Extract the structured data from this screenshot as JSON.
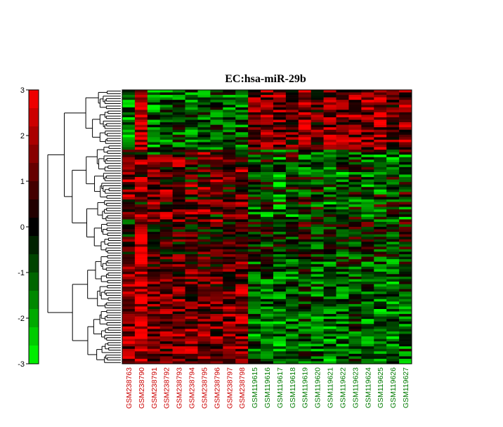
{
  "chart_data": {
    "type": "heatmap",
    "title": "EC:hsa-miR-29b",
    "colorbar": {
      "min": -3,
      "max": 3,
      "ticks": [
        "3",
        "2",
        "1",
        "0",
        "-1",
        "-2",
        "-3"
      ],
      "low_color": "#00ff00",
      "mid_color": "#000000",
      "high_color": "#ff0000"
    },
    "rows": 110,
    "columns": [
      {
        "name": "GSM238763",
        "group": "red"
      },
      {
        "name": "GSM238790",
        "group": "red"
      },
      {
        "name": "GSM238791",
        "group": "red"
      },
      {
        "name": "GSM238792",
        "group": "red"
      },
      {
        "name": "GSM238793",
        "group": "red"
      },
      {
        "name": "GSM238794",
        "group": "red"
      },
      {
        "name": "GSM238795",
        "group": "red"
      },
      {
        "name": "GSM238796",
        "group": "red"
      },
      {
        "name": "GSM238797",
        "group": "red"
      },
      {
        "name": "GSM238798",
        "group": "red"
      },
      {
        "name": "GSM119615",
        "group": "green"
      },
      {
        "name": "GSM119616",
        "group": "green"
      },
      {
        "name": "GSM119617",
        "group": "green"
      },
      {
        "name": "GSM119618",
        "group": "green"
      },
      {
        "name": "GSM119619",
        "group": "green"
      },
      {
        "name": "GSM119620",
        "group": "green"
      },
      {
        "name": "GSM119621",
        "group": "green"
      },
      {
        "name": "GSM119622",
        "group": "green"
      },
      {
        "name": "GSM119623",
        "group": "green"
      },
      {
        "name": "GSM119624",
        "group": "green"
      },
      {
        "name": "GSM119625",
        "group": "green"
      },
      {
        "name": "GSM119626",
        "group": "green"
      },
      {
        "name": "GSM119627",
        "group": "green"
      }
    ],
    "column_profiles": [
      [
        -1.6,
        1.6
      ],
      [
        2.3,
        2.3
      ],
      [
        -1.4,
        1.2
      ],
      [
        -1.2,
        1.3
      ],
      [
        -1.0,
        1.4
      ],
      [
        -1.2,
        1.4
      ],
      [
        -1.0,
        1.3
      ],
      [
        -1.1,
        1.4
      ],
      [
        -1.2,
        1.5
      ],
      [
        -1.0,
        1.6
      ],
      [
        1.5,
        -1.3
      ],
      [
        1.4,
        -1.2
      ],
      [
        1.5,
        -1.6
      ],
      [
        1.2,
        -1.3
      ],
      [
        2.0,
        -1.0
      ],
      [
        1.1,
        -1.2
      ],
      [
        1.4,
        -1.5
      ],
      [
        1.3,
        -1.2
      ],
      [
        1.5,
        -1.0
      ],
      [
        1.6,
        -1.4
      ],
      [
        1.8,
        -1.5
      ],
      [
        1.2,
        -1.6
      ],
      [
        1.6,
        -1.1
      ]
    ],
    "group_colors": {
      "red": "#cc0000",
      "green": "#007a00"
    },
    "dendrogram": "row-clustering, left side",
    "colorbar_position": "left"
  }
}
